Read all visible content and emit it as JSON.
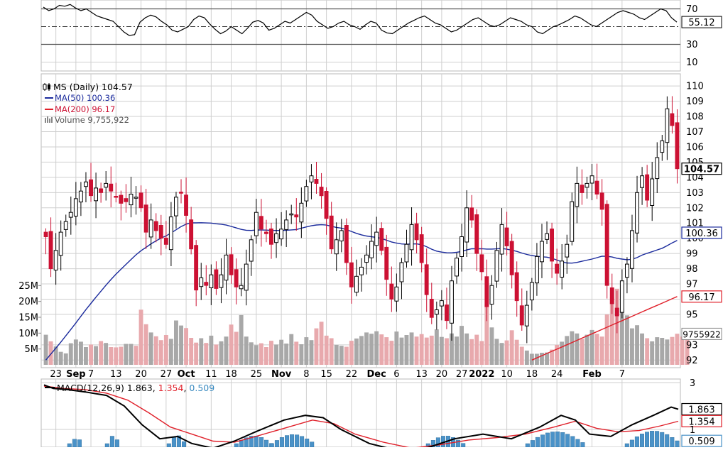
{
  "colors": {
    "up": "#000000",
    "down": "#cc1133",
    "ma50": "#1a2a9c",
    "ma200": "#e0202a",
    "vol_up": "#a8a8a8",
    "vol_down": "#e8a9ad",
    "macd_line": "#000000",
    "signal_line": "#e0202a",
    "histogram": "#4a92c8",
    "grid": "#cfcfcf"
  },
  "chart_data": [
    {
      "type": "line",
      "name": "RSI panel",
      "y_ticks": [
        70,
        50,
        30,
        10
      ],
      "last_value_label": "55.12",
      "ylim": [
        0,
        80
      ],
      "values": [
        72,
        68,
        70,
        74,
        73,
        75,
        71,
        68,
        70,
        66,
        62,
        60,
        58,
        56,
        50,
        44,
        40,
        41,
        55,
        60,
        63,
        61,
        56,
        52,
        46,
        44,
        47,
        50,
        58,
        62,
        60,
        53,
        47,
        42,
        45,
        50,
        46,
        42,
        48,
        55,
        57,
        54,
        46,
        48,
        52,
        56,
        54,
        58,
        62,
        66,
        63,
        56,
        52,
        48,
        50,
        54,
        56,
        52,
        50,
        47,
        52,
        56,
        54,
        46,
        43,
        42,
        46,
        50,
        54,
        57,
        60,
        62,
        58,
        54,
        52,
        48,
        44,
        46,
        50,
        54,
        58,
        60,
        56,
        52,
        50,
        52,
        56,
        60,
        58,
        56,
        52,
        50,
        44,
        42,
        46,
        50,
        52,
        55,
        58,
        62,
        60,
        56,
        52,
        50,
        54,
        58,
        62,
        66,
        68,
        66,
        64,
        60,
        58,
        62,
        66,
        70,
        68,
        60,
        55.12
      ]
    },
    {
      "type": "candlestick",
      "name": "Price panel",
      "legend": {
        "symbol": "MS (Daily) 104.57",
        "ma50": "MA(50) 100.36",
        "ma200": "MA(200) 96.17",
        "volume": "Volume 9,755,922"
      },
      "y_ticks": [
        92,
        93,
        95,
        96,
        97,
        98,
        99,
        100,
        101,
        102,
        103,
        104,
        105,
        106,
        107,
        108,
        109,
        110
      ],
      "ylim": [
        91.5,
        110.8
      ],
      "x_labels": [
        "23",
        "Sep",
        "7",
        "13",
        "20",
        "27",
        "Oct",
        "11",
        "18",
        "25",
        "Nov",
        "8",
        "15",
        "22",
        "Dec",
        "6",
        "13",
        "20",
        "27",
        "2022",
        "10",
        "18",
        "24",
        "Feb",
        "7"
      ],
      "price_labels": {
        "last": "104.57",
        "ma50": "100.36",
        "ma200": "96.17",
        "volume": "9755922"
      },
      "volume_ticks": [
        "25M",
        "20M",
        "15M",
        "10M",
        "5M"
      ],
      "closes": [
        100.1,
        98.0,
        99.2,
        100.4,
        101.1,
        101.7,
        102.6,
        103.1,
        103.7,
        102.8,
        103.3,
        103.0,
        103.6,
        103.1,
        102.7,
        102.3,
        102.4,
        102.9,
        102.7,
        102.0,
        100.4,
        101.2,
        100.5,
        100.0,
        99.6,
        101.4,
        102.7,
        103.0,
        101.5,
        99.3,
        96.6,
        97.4,
        96.9,
        97.6,
        96.7,
        97.6,
        98.9,
        97.6,
        96.8,
        96.9,
        98.3,
        99.9,
        101.7,
        100.6,
        100.3,
        99.6,
        100.3,
        100.6,
        101.2,
        101.6,
        101.4,
        102.3,
        103.4,
        104.1,
        103.6,
        102.8,
        101.3,
        99.3,
        99.9,
        100.5,
        98.4,
        96.8,
        97.5,
        98.1,
        98.9,
        99.8,
        100.4,
        99.2,
        97.3,
        96.0,
        96.8,
        98.4,
        99.6,
        100.9,
        99.9,
        98.4,
        96.3,
        94.8,
        95.3,
        95.9,
        94.6,
        97.2,
        98.7,
        100.1,
        102.0,
        101.2,
        99.0,
        97.8,
        95.5,
        96.9,
        99.2,
        100.9,
        99.5,
        97.6,
        95.9,
        94.3,
        95.6,
        97.1,
        98.8,
        99.8,
        100.3,
        98.5,
        97.7,
        98.5,
        99.6,
        102.4,
        103.6,
        103.0,
        103.6,
        104.1,
        102.9,
        101.9,
        96.9,
        95.7,
        94.9,
        97.2,
        98.3,
        100.5,
        103.0,
        104.1,
        102.5,
        103.9,
        105.3,
        106.4,
        108.5,
        107.4,
        104.57
      ],
      "volume_m": [
        9.5,
        7.4,
        5.8,
        4.1,
        3.6,
        6.8,
        8.0,
        7.3,
        5.6,
        6.4,
        5.9,
        7.5,
        6.9,
        5.6,
        5.5,
        5.7,
        6.6,
        6.6,
        6.0,
        17.4,
        12.8,
        10.2,
        9.0,
        7.8,
        9.4,
        8.2,
        14.0,
        12.4,
        11.6,
        8.5,
        7.0,
        8.4,
        6.9,
        9.2,
        6.4,
        7.4,
        8.9,
        12.7,
        10.4,
        15.7,
        8.9,
        7.1,
        6.2,
        6.8,
        5.6,
        7.6,
        6.4,
        7.9,
        6.7,
        9.7,
        7.3,
        6.5,
        8.7,
        7.8,
        11.5,
        13.6,
        9.2,
        8.4,
        6.3,
        6.0,
        5.7,
        7.6,
        8.3,
        9.1,
        10.2,
        9.8,
        10.6,
        9.6,
        8.7,
        7.6,
        10.5,
        8.6,
        9.4,
        10.2,
        8.9,
        9.7,
        8.6,
        9.2,
        11.2,
        8.8,
        8.4,
        9.9,
        8.9,
        12.3,
        9.9,
        8.1,
        9.5,
        7.5,
        19.0,
        11.8,
        8.2,
        6.9,
        7.7,
        10.9,
        7.9,
        5.7,
        4.5,
        3.5,
        3.5,
        3.8,
        3.9,
        4.8,
        6.3,
        7.3,
        9.1,
        10.6,
        9.9,
        8.2,
        9.5,
        11.0,
        9.8,
        8.9,
        15.9,
        21.3,
        24.0,
        17.8,
        15.6,
        11.5,
        12.5,
        9.9,
        8.4,
        7.4,
        8.7,
        8.5,
        8.0,
        8.8,
        9.8,
        8.9,
        9.76
      ]
    },
    {
      "type": "line",
      "name": "MACD panel",
      "legend_prefix": "MACD(12,26,9)",
      "macd": "1.863",
      "signal": "1.354",
      "histogram": "0.509",
      "y_ticks": [
        "3",
        "1"
      ],
      "price_labels": {
        "macd": "1.863",
        "signal": "1.354",
        "histogram": "0.509"
      }
    }
  ]
}
